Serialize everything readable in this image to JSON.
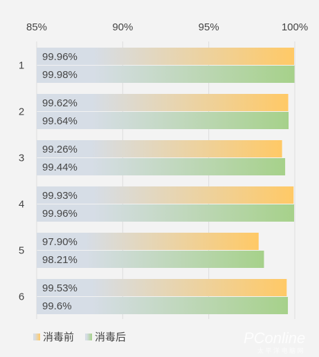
{
  "chart_data": {
    "type": "bar",
    "orientation": "horizontal",
    "categories": [
      "1",
      "2",
      "3",
      "4",
      "5",
      "6"
    ],
    "series": [
      {
        "name": "消毒前",
        "values": [
          99.96,
          99.62,
          99.26,
          99.93,
          97.9,
          99.53
        ],
        "labels": [
          "99.96%",
          "99.62%",
          "99.26%",
          "99.93%",
          "97.90%",
          "99.53%"
        ],
        "color_start": "#d6dde6",
        "color_end": "#ffc966"
      },
      {
        "name": "消毒后",
        "values": [
          99.98,
          99.64,
          99.44,
          99.96,
          98.21,
          99.6
        ],
        "labels": [
          "99.98%",
          "99.64%",
          "99.44%",
          "99.96%",
          "98.21%",
          "99.6%"
        ],
        "color_start": "#d6dde6",
        "color_end": "#a6d18a"
      }
    ],
    "xlim": [
      85,
      100
    ],
    "xticks": [
      85,
      90,
      95,
      100
    ],
    "xtick_labels": [
      "85%",
      "90%",
      "95%",
      "100%"
    ],
    "xaxis_position": "top",
    "grid": true,
    "legend": "bottom-left"
  },
  "watermark": {
    "text": "PConline",
    "subtext": "太 平 洋 电 脑 网",
    "color": "#ffffff"
  }
}
